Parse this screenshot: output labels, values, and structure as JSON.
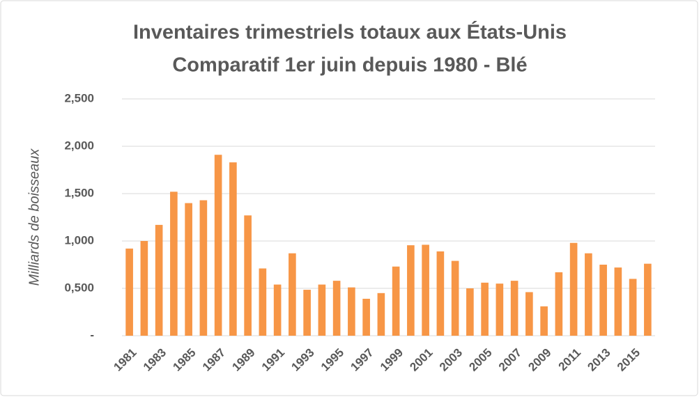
{
  "chart_data": {
    "type": "bar",
    "title": "Inventaires trimestriels totaux aux États-Unis",
    "subtitle": "Comparatif 1er juin depuis 1980 - Blé",
    "y_label": "Milliards de boisseaux",
    "categories": [
      "1981",
      null,
      "1983",
      null,
      "1985",
      null,
      "1987",
      null,
      "1989",
      null,
      "1991",
      null,
      "1993",
      null,
      "1995",
      null,
      "1997",
      null,
      "1999",
      null,
      "2001",
      null,
      "2003",
      null,
      "2005",
      null,
      "2007",
      null,
      "2009",
      null,
      "2011",
      null,
      "2013",
      null,
      "2015",
      null
    ],
    "values": [
      0.92,
      1.0,
      1.17,
      1.52,
      1.4,
      1.43,
      1.91,
      1.83,
      1.27,
      0.71,
      0.54,
      0.87,
      0.485,
      0.54,
      0.58,
      0.51,
      0.39,
      0.45,
      0.73,
      0.955,
      0.96,
      0.89,
      0.79,
      0.5,
      0.56,
      0.55,
      0.58,
      0.46,
      0.31,
      0.67,
      0.98,
      0.87,
      0.75,
      0.72,
      0.6,
      0.76
    ],
    "color": "#f79646",
    "ylim": [
      0,
      2.5
    ],
    "yticks": [
      {
        "value": 0,
        "label": "-"
      },
      {
        "value": 0.5,
        "label": "0,500"
      },
      {
        "value": 1,
        "label": "1,000"
      },
      {
        "value": 1.5,
        "label": "1,500"
      },
      {
        "value": 2,
        "label": "2,000"
      },
      {
        "value": 2.5,
        "label": "2,500"
      }
    ],
    "grid": true
  }
}
